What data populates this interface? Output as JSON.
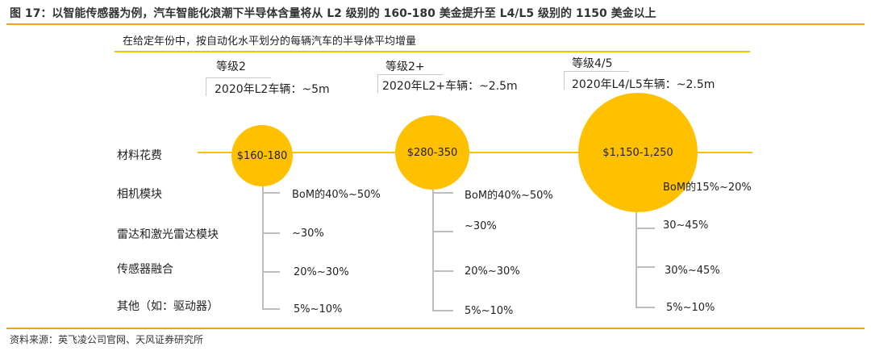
{
  "figure_title": "图 17：以智能传感器为例，汽车智能化浪潮下半导体含量将从 L2 级别的 160-180 美金提升至 L4/L5 级别的 1150 美金以上",
  "subtitle": "在给定年份中，按自动化水平划分的每辆汽车的半导体平均增量",
  "row_labels": [
    "材料花费",
    "相机模块",
    "雷达和激光雷达模块",
    "传感器融合",
    "其他（如：驱动器）"
  ],
  "levels": [
    {
      "name": "等级2",
      "vehicles": "2020年L2车辆：~5m",
      "cost": "$160-180",
      "breakdown": [
        "BoM的40%~50%",
        "~30%",
        "20%~30%",
        "5%~10%"
      ]
    },
    {
      "name": "等级2+",
      "vehicles": "2020年L2+车辆：~2.5m",
      "cost": "$280-350",
      "breakdown": [
        "BoM的40%~50%",
        "~30%",
        "20%~30%",
        "5%~10%"
      ]
    },
    {
      "name": "等级4/5",
      "vehicles": "2020年L4/L5车辆：~2.5m",
      "cost": "$1,150-1,250",
      "breakdown": [
        "BoM的15%~20%",
        "30~45%",
        "30%~45%",
        "5%~10%"
      ]
    }
  ],
  "source": "资料来源：英飞凌公司官网、天风证券研究所",
  "colors": {
    "accent": "#f0a024",
    "circle": "#ffc000",
    "line": "#f5c200"
  }
}
